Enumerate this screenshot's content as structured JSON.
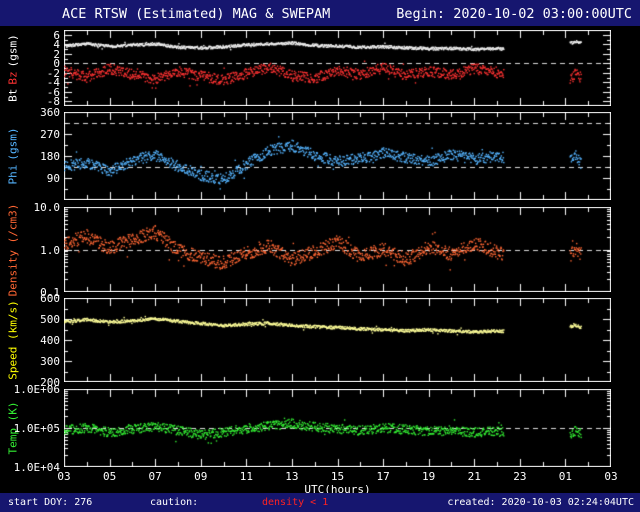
{
  "header": {
    "title": "ACE RTSW (Estimated) MAG & SWEPAM",
    "begin": "Begin: 2020-10-02 03:00:00UTC"
  },
  "footer": {
    "start_doy": "start DOY: 276",
    "caution_label": "caution:",
    "caution_value": "density < 1",
    "caution_color": "#ff2222",
    "created": "created: 2020-10-03 02:24:04UTC"
  },
  "colors": {
    "background": "#000000",
    "bar_background": "#16166f",
    "frame": "#ffffff"
  },
  "x_axis": {
    "label": "UTC(hours)",
    "tick_labels": [
      "03",
      "05",
      "07",
      "09",
      "11",
      "13",
      "15",
      "17",
      "19",
      "21",
      "23",
      "01",
      "03"
    ],
    "tick_hours": [
      3,
      5,
      7,
      9,
      11,
      13,
      15,
      17,
      19,
      21,
      23,
      25,
      27
    ],
    "range": [
      3,
      27
    ]
  },
  "chart_data": {
    "type": "line",
    "title": "ACE RTSW (Estimated) MAG & SWEPAM",
    "begin_time": "2020-10-02 03:00:00UTC",
    "x_unit": "UTC hours (03:00 Oct 2 to 03:00 Oct 3)",
    "panels": [
      {
        "id": "mag",
        "ylabel_parts": [
          {
            "text": "Bt",
            "color": "#ffffff"
          },
          {
            "text": "Bz",
            "color": "#ff3232"
          },
          {
            "text": "(gsm)",
            "color": "#ffffff"
          }
        ],
        "scale": "linear",
        "ylim": [
          -9,
          7
        ],
        "minor_step": 1,
        "yticks": {
          "values": [
            6,
            4,
            2,
            0,
            -2,
            -4,
            -6,
            -8
          ],
          "labels": [
            "6",
            "4",
            "2",
            "0",
            "-2",
            "-4",
            "-6",
            "-8"
          ]
        },
        "dashed": [
          0
        ],
        "series": [
          {
            "name": "Bt",
            "color": "#f2f2f2",
            "noise": 0.3,
            "points": [
              [
                3,
                3.8
              ],
              [
                4,
                4.2
              ],
              [
                5,
                3.7
              ],
              [
                6,
                4.0
              ],
              [
                7,
                4.2
              ],
              [
                8,
                3.5
              ],
              [
                9,
                3.4
              ],
              [
                10,
                3.6
              ],
              [
                11,
                4.0
              ],
              [
                12,
                4.2
              ],
              [
                13,
                4.4
              ],
              [
                14,
                3.9
              ],
              [
                15,
                3.7
              ],
              [
                16,
                3.5
              ],
              [
                17,
                3.6
              ],
              [
                18,
                3.4
              ],
              [
                19,
                3.2
              ],
              [
                20,
                3.3
              ],
              [
                21,
                3.0
              ],
              [
                22,
                3.3
              ],
              [
                22.3,
                3.1
              ],
              [
                25.2,
                4.4
              ],
              [
                25.45,
                4.7
              ],
              [
                25.7,
                4.3
              ]
            ]
          },
          {
            "name": "Bz",
            "color": "#ff3232",
            "noise": 1.1,
            "points": [
              [
                3,
                -1.5
              ],
              [
                4,
                -2.8
              ],
              [
                5,
                -1.0
              ],
              [
                6,
                -2.2
              ],
              [
                7,
                -3.2
              ],
              [
                8,
                -1.5
              ],
              [
                9,
                -2.6
              ],
              [
                10,
                -3.4
              ],
              [
                11,
                -2.0
              ],
              [
                12,
                -0.8
              ],
              [
                13,
                -2.4
              ],
              [
                14,
                -3.0
              ],
              [
                15,
                -1.4
              ],
              [
                16,
                -2.2
              ],
              [
                17,
                -0.8
              ],
              [
                18,
                -2.4
              ],
              [
                19,
                -1.6
              ],
              [
                20,
                -2.2
              ],
              [
                21,
                -1.0
              ],
              [
                22,
                -1.8
              ],
              [
                22.3,
                -2.2
              ],
              [
                25.2,
                -3.6
              ],
              [
                25.45,
                -1.8
              ],
              [
                25.7,
                -3.0
              ]
            ]
          }
        ]
      },
      {
        "id": "phi",
        "ylabel_parts": [
          {
            "text": "Phi",
            "color": "#55b4ff"
          },
          {
            "text": "(gsm)",
            "color": "#55b4ff"
          }
        ],
        "scale": "linear",
        "ylim": [
          0,
          360
        ],
        "minor_step": 45,
        "yticks": {
          "values": [
            360,
            270,
            180,
            90
          ],
          "labels": [
            "360",
            "270",
            "180",
            "90"
          ]
        },
        "dashed": [
          135,
          315
        ],
        "series": [
          {
            "name": "Phi",
            "color": "#55b4ff",
            "noise": 22,
            "points": [
              [
                3,
                140
              ],
              [
                4,
                155
              ],
              [
                5,
                120
              ],
              [
                6,
                165
              ],
              [
                7,
                185
              ],
              [
                8,
                140
              ],
              [
                9,
                105
              ],
              [
                10,
                85
              ],
              [
                11,
                150
              ],
              [
                12,
                205
              ],
              [
                13,
                225
              ],
              [
                14,
                185
              ],
              [
                15,
                160
              ],
              [
                16,
                172
              ],
              [
                17,
                195
              ],
              [
                18,
                176
              ],
              [
                19,
                160
              ],
              [
                20,
                188
              ],
              [
                21,
                170
              ],
              [
                22,
                182
              ],
              [
                22.3,
                175
              ],
              [
                25.2,
                168
              ],
              [
                25.45,
                182
              ],
              [
                25.7,
                150
              ]
            ]
          }
        ]
      },
      {
        "id": "density",
        "ylabel_parts": [
          {
            "text": "Density (/cm3)",
            "color": "#ff6633"
          }
        ],
        "scale": "log",
        "ylim": [
          0.1,
          10
        ],
        "yticks": {
          "values": [
            10,
            1,
            0.1
          ],
          "labels": [
            "10.0",
            "1.0",
            "0.1"
          ]
        },
        "dashed": [
          1
        ],
        "series": [
          {
            "name": "Density",
            "color": "#ff6633",
            "noise": 0.16,
            "points": [
              [
                3,
                1.4
              ],
              [
                4,
                2.1
              ],
              [
                5,
                1.1
              ],
              [
                6,
                1.8
              ],
              [
                7,
                2.6
              ],
              [
                8,
                1.0
              ],
              [
                9,
                0.65
              ],
              [
                10,
                0.5
              ],
              [
                11,
                0.85
              ],
              [
                12,
                1.3
              ],
              [
                13,
                0.6
              ],
              [
                14,
                0.9
              ],
              [
                15,
                1.6
              ],
              [
                16,
                0.7
              ],
              [
                17,
                1.05
              ],
              [
                18,
                0.6
              ],
              [
                19,
                1.2
              ],
              [
                20,
                0.8
              ],
              [
                21,
                1.5
              ],
              [
                22,
                0.9
              ],
              [
                22.3,
                0.8
              ],
              [
                25.2,
                0.7
              ],
              [
                25.45,
                1.1
              ],
              [
                25.7,
                0.8
              ]
            ]
          }
        ]
      },
      {
        "id": "speed",
        "ylabel_parts": [
          {
            "text": "Speed (km/s)",
            "color": "#ffff00"
          }
        ],
        "scale": "linear",
        "ylim": [
          200,
          600
        ],
        "minor_step": 50,
        "yticks": {
          "values": [
            600,
            500,
            400,
            300,
            200
          ],
          "labels": [
            "600",
            "500",
            "400",
            "300",
            "200"
          ]
        },
        "dashed": [],
        "series": [
          {
            "name": "Speed",
            "color": "#ffff99",
            "noise": 7,
            "points": [
              [
                3,
                490
              ],
              [
                4,
                500
              ],
              [
                5,
                488
              ],
              [
                6,
                495
              ],
              [
                7,
                505
              ],
              [
                8,
                492
              ],
              [
                9,
                482
              ],
              [
                10,
                472
              ],
              [
                11,
                478
              ],
              [
                12,
                483
              ],
              [
                13,
                472
              ],
              [
                14,
                466
              ],
              [
                15,
                462
              ],
              [
                16,
                456
              ],
              [
                17,
                452
              ],
              [
                18,
                447
              ],
              [
                19,
                452
              ],
              [
                20,
                446
              ],
              [
                21,
                441
              ],
              [
                22,
                447
              ],
              [
                22.3,
                444
              ],
              [
                25.2,
                466
              ],
              [
                25.45,
                472
              ],
              [
                25.7,
                461
              ]
            ]
          }
        ]
      },
      {
        "id": "temp",
        "ylabel_parts": [
          {
            "text": "Temp (K)",
            "color": "#33ee33"
          }
        ],
        "scale": "log",
        "ylim": [
          10000,
          1000000
        ],
        "yticks": {
          "values": [
            1000000,
            100000,
            10000
          ],
          "labels": [
            "1.0E+06",
            "1.0E+05",
            "1.0E+04"
          ]
        },
        "dashed": [
          100000
        ],
        "series": [
          {
            "name": "Temp",
            "color": "#33ee33",
            "noise": 0.12,
            "points": [
              [
                3,
                90000
              ],
              [
                4,
                105000
              ],
              [
                5,
                80000
              ],
              [
                6,
                95000
              ],
              [
                7,
                115000
              ],
              [
                8,
                90000
              ],
              [
                9,
                70000
              ],
              [
                10,
                80000
              ],
              [
                11,
                100000
              ],
              [
                12,
                120000
              ],
              [
                13,
                135000
              ],
              [
                14,
                110000
              ],
              [
                15,
                100000
              ],
              [
                16,
                90000
              ],
              [
                17,
                105000
              ],
              [
                18,
                95000
              ],
              [
                19,
                85000
              ],
              [
                20,
                90000
              ],
              [
                21,
                80000
              ],
              [
                22,
                85000
              ],
              [
                22.3,
                80000
              ],
              [
                25.2,
                70000
              ],
              [
                25.45,
                90000
              ],
              [
                25.7,
                75000
              ]
            ]
          }
        ]
      }
    ]
  }
}
